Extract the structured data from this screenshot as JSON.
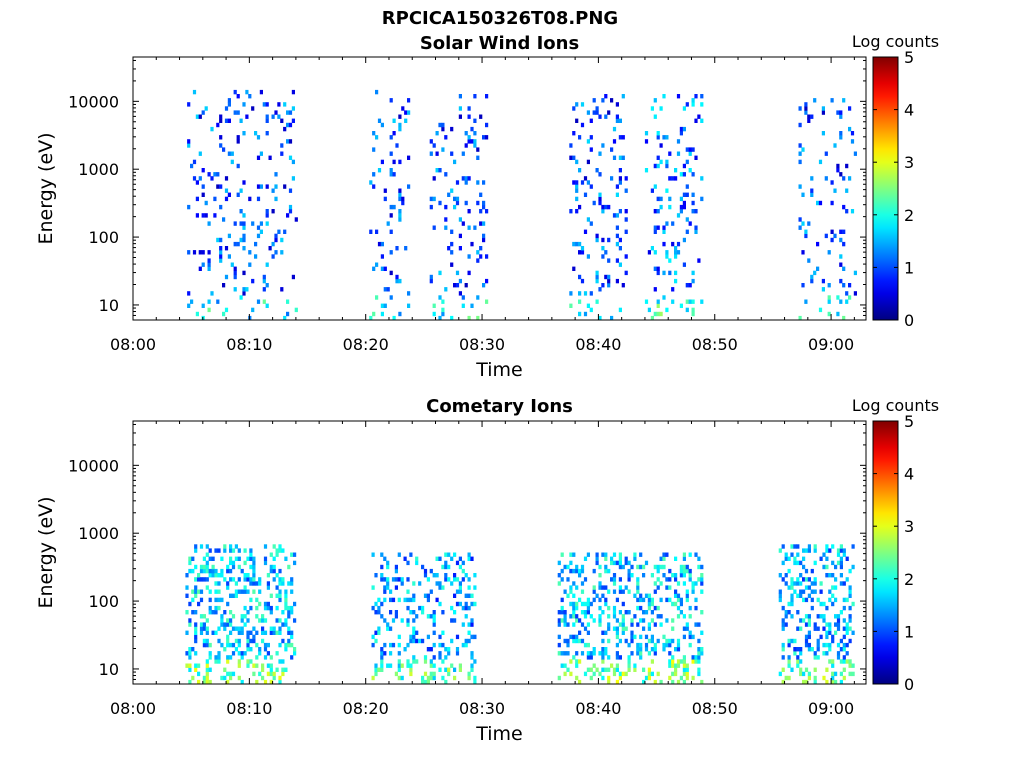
{
  "figure_title": "RPCICA150326T08.PNG",
  "chart_data": [
    {
      "type": "heatmap",
      "title": "Solar Wind Ions",
      "xlabel": "Time",
      "ylabel": "Energy (eV)",
      "y_scale": "log",
      "ylim": [
        6,
        45000
      ],
      "y_ticks": [
        10,
        100,
        1000,
        10000
      ],
      "y_tick_labels": [
        "10",
        "100",
        "1000",
        "10000"
      ],
      "xlim_minutes": [
        0,
        63
      ],
      "x_ticks_minutes": [
        0,
        10,
        20,
        30,
        40,
        50,
        60
      ],
      "x_tick_labels": [
        "08:00",
        "08:10",
        "08:20",
        "08:30",
        "08:40",
        "08:50",
        "09:00"
      ],
      "colorbar": {
        "label": "Log counts",
        "range": [
          0,
          5
        ],
        "ticks": [
          "0",
          "1",
          "2",
          "3",
          "4",
          "5"
        ],
        "colormap": "jet"
      },
      "clusters": [
        {
          "start_min": 4.4,
          "end_min": 14.0,
          "e_low": 6,
          "e_high": 13000,
          "level": 1.0,
          "density": 0.09
        },
        {
          "start_min": 20.3,
          "end_min": 23.8,
          "e_low": 6,
          "e_high": 13000,
          "level": 1.0,
          "density": 0.1
        },
        {
          "start_min": 25.5,
          "end_min": 30.5,
          "e_low": 6,
          "e_high": 12000,
          "level": 1.0,
          "density": 0.1
        },
        {
          "start_min": 37.5,
          "end_min": 42.5,
          "e_low": 6,
          "e_high": 12000,
          "level": 1.0,
          "density": 0.1
        },
        {
          "start_min": 44.0,
          "end_min": 49.0,
          "e_low": 6,
          "e_high": 13000,
          "level": 1.2,
          "density": 0.12
        },
        {
          "start_min": 57.2,
          "end_min": 62.0,
          "e_low": 6,
          "e_high": 10000,
          "level": 1.0,
          "density": 0.1
        }
      ]
    },
    {
      "type": "heatmap",
      "title": "Cometary Ions",
      "xlabel": "Time",
      "ylabel": "Energy (eV)",
      "y_scale": "log",
      "ylim": [
        6,
        45000
      ],
      "y_ticks": [
        10,
        100,
        1000,
        10000
      ],
      "y_tick_labels": [
        "10",
        "100",
        "1000",
        "10000"
      ],
      "xlim_minutes": [
        0,
        63
      ],
      "x_ticks_minutes": [
        0,
        10,
        20,
        30,
        40,
        50,
        60
      ],
      "x_tick_labels": [
        "08:00",
        "08:10",
        "08:20",
        "08:30",
        "08:40",
        "08:50",
        "09:00"
      ],
      "colorbar": {
        "label": "Log counts",
        "range": [
          0,
          5
        ],
        "ticks": [
          "0",
          "1",
          "2",
          "3",
          "4",
          "5"
        ],
        "colormap": "jet"
      },
      "clusters": [
        {
          "start_min": 4.5,
          "end_min": 14.0,
          "e_low": 6,
          "e_high": 600,
          "level": 1.6,
          "density": 0.3
        },
        {
          "start_min": 20.5,
          "end_min": 29.5,
          "e_low": 6,
          "e_high": 500,
          "level": 1.4,
          "density": 0.22
        },
        {
          "start_min": 36.5,
          "end_min": 49.0,
          "e_low": 6,
          "e_high": 500,
          "level": 1.6,
          "density": 0.3
        },
        {
          "start_min": 55.5,
          "end_min": 62.0,
          "e_low": 6,
          "e_high": 600,
          "level": 1.5,
          "density": 0.28
        }
      ]
    }
  ]
}
